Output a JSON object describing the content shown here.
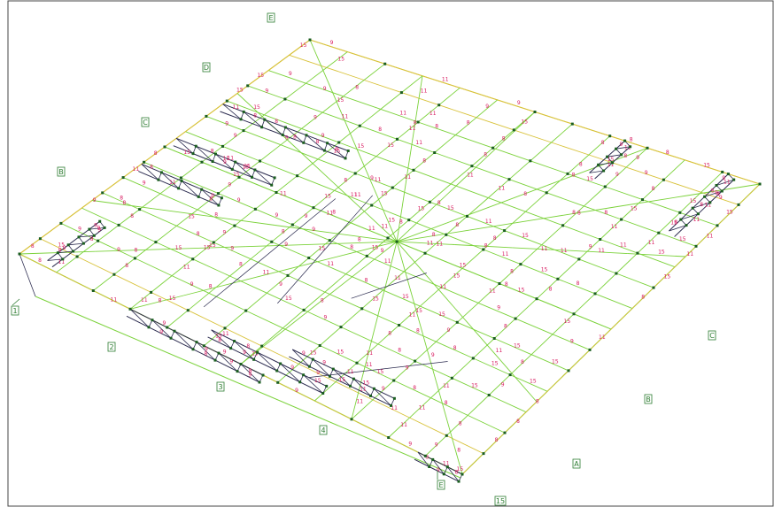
{
  "view": {
    "background": "#ffffff",
    "frame_color": "#444444"
  },
  "grid_tags": [
    {
      "name": "E",
      "id": "grid-tag-e-top"
    },
    {
      "name": "D",
      "id": "grid-tag-d-left"
    },
    {
      "name": "C",
      "id": "grid-tag-c-left"
    },
    {
      "name": "B",
      "id": "grid-tag-b-left"
    },
    {
      "name": "1",
      "id": "grid-tag-1"
    },
    {
      "name": "2",
      "id": "grid-tag-2"
    },
    {
      "name": "3",
      "id": "grid-tag-3"
    },
    {
      "name": "4",
      "id": "grid-tag-4"
    },
    {
      "name": "E",
      "id": "grid-tag-e-bottom"
    },
    {
      "name": "15",
      "id": "grid-tag-15"
    },
    {
      "name": "A",
      "id": "grid-tag-a-right"
    },
    {
      "name": "B",
      "id": "grid-tag-b-right"
    },
    {
      "name": "C",
      "id": "grid-tag-c-right"
    }
  ],
  "member_colors": {
    "dark": "#2b2b4f",
    "light": "#7bd23a",
    "mid": "#d8c23a",
    "label": "#d81b60",
    "node": "#1b5e20"
  },
  "member_sizes": [
    "8",
    "9",
    "11",
    "15"
  ]
}
